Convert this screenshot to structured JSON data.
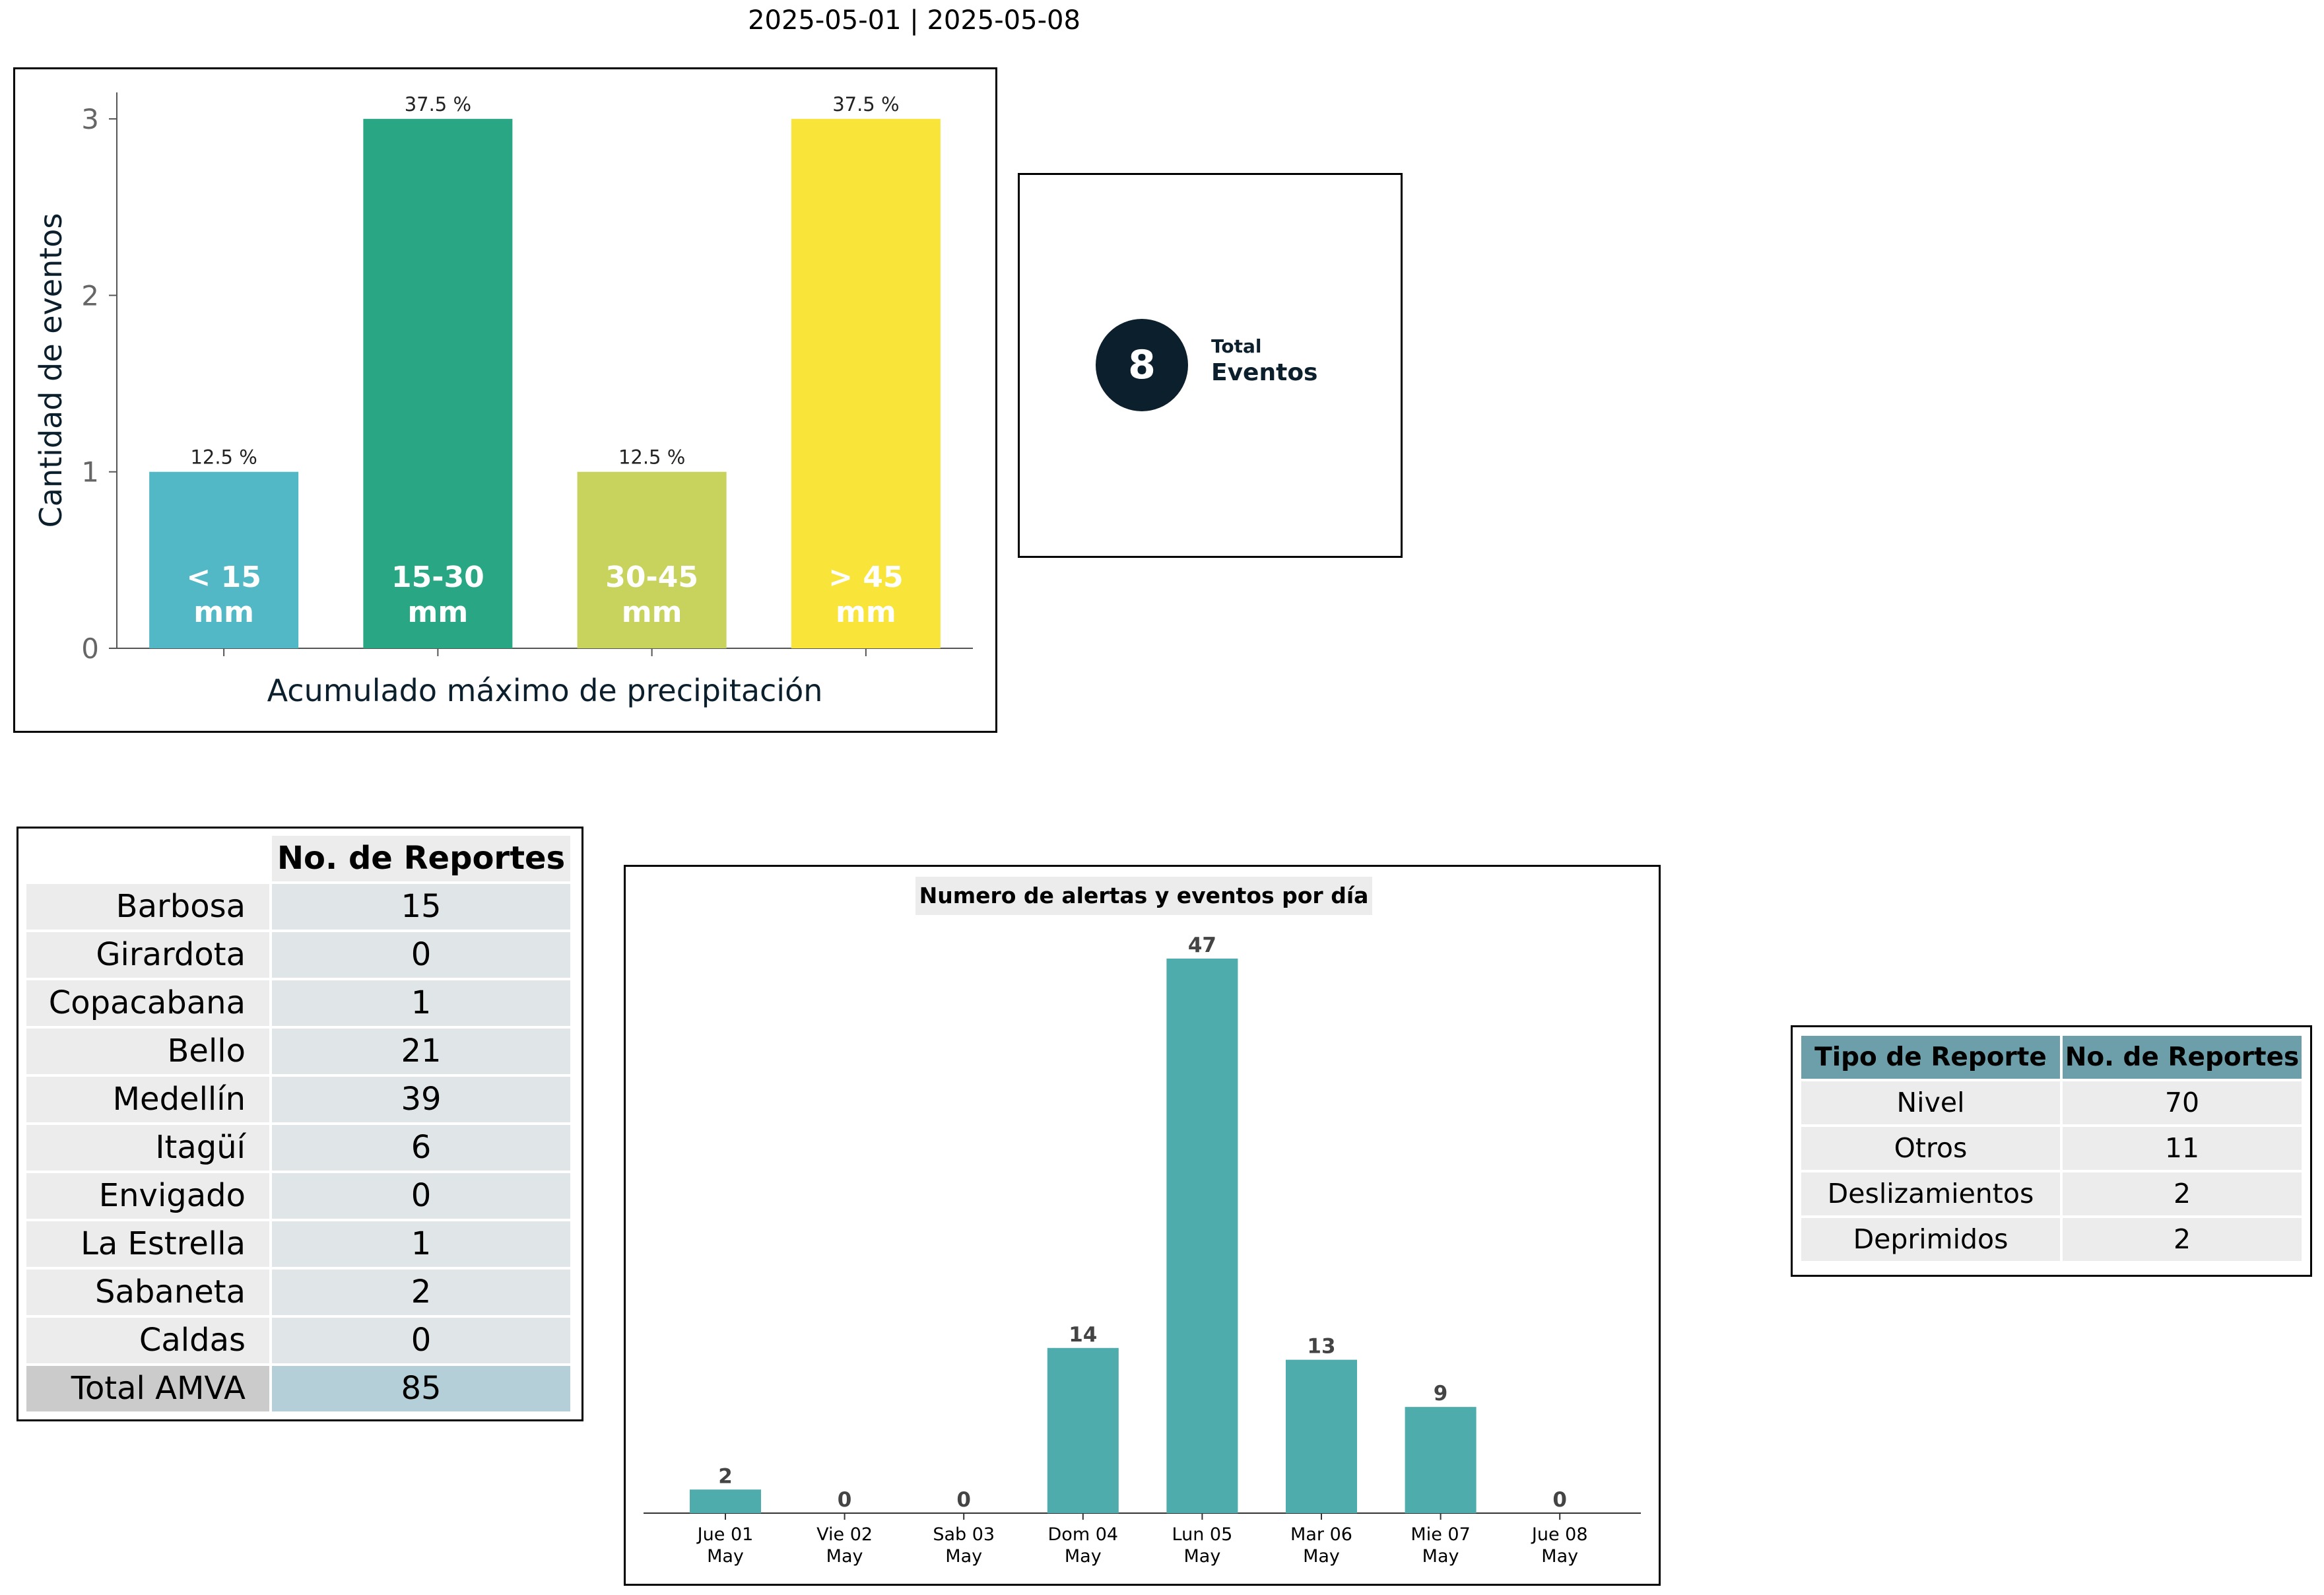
{
  "header": {
    "period": "2025-05-01  |  2025-05-08"
  },
  "kpi": {
    "value": "8",
    "label_small": "Total",
    "label_big": "Eventos"
  },
  "municipios": {
    "header": "No. de Reportes",
    "rows": [
      {
        "name": "Barbosa",
        "value": "15"
      },
      {
        "name": "Girardota",
        "value": "0"
      },
      {
        "name": "Copacabana",
        "value": "1"
      },
      {
        "name": "Bello",
        "value": "21"
      },
      {
        "name": "Medellín",
        "value": "39"
      },
      {
        "name": "Itagüí",
        "value": "6"
      },
      {
        "name": "Envigado",
        "value": "0"
      },
      {
        "name": "La Estrella",
        "value": "1"
      },
      {
        "name": "Sabaneta",
        "value": "2"
      },
      {
        "name": "Caldas",
        "value": "0"
      }
    ],
    "total": {
      "name": "Total AMVA",
      "value": "85"
    }
  },
  "tipo_reporte": {
    "headers": [
      "Tipo de Reporte",
      "No. de Reportes"
    ],
    "rows": [
      {
        "name": "Nivel",
        "value": "70"
      },
      {
        "name": "Otros",
        "value": "11"
      },
      {
        "name": "Deslizamientos",
        "value": "2"
      },
      {
        "name": "Deprimidos",
        "value": "2"
      }
    ]
  },
  "chart_data": [
    {
      "type": "bar",
      "categories": [
        "< 15 mm",
        "15-30 mm",
        "30-45 mm",
        "> 45 mm"
      ],
      "category_lines": [
        [
          "< 15",
          "mm"
        ],
        [
          "15-30",
          "mm"
        ],
        [
          "30-45",
          "mm"
        ],
        [
          "> 45",
          "mm"
        ]
      ],
      "values": [
        1,
        3,
        1,
        3
      ],
      "value_labels": [
        "12.5 %",
        "37.5 %",
        "12.5 %",
        "37.5 %"
      ],
      "colors": [
        "#52b8c5",
        "#29a684",
        "#c8d35e",
        "#f9e53a"
      ],
      "title": "",
      "xlabel": "Acumulado máximo de precipitación",
      "ylabel": "Cantidad de eventos",
      "ylim": [
        0,
        3.15
      ],
      "yticks": [
        0,
        1,
        2,
        3
      ],
      "grid": false
    },
    {
      "type": "bar",
      "title": "Numero de alertas y eventos por día",
      "categories": [
        "Jue 01 May",
        "Vie 02 May",
        "Sab 03 May",
        "Dom 04 May",
        "Lun 05 May",
        "Mar 06 May",
        "Mie 07 May",
        "Jue 08 May"
      ],
      "category_lines": [
        [
          "Jue 01",
          "May"
        ],
        [
          "Vie 02",
          "May"
        ],
        [
          "Sab 03",
          "May"
        ],
        [
          "Dom 04",
          "May"
        ],
        [
          "Lun 05",
          "May"
        ],
        [
          "Mar 06",
          "May"
        ],
        [
          "Mie 07",
          "May"
        ],
        [
          "Jue 08",
          "May"
        ]
      ],
      "values": [
        2,
        0,
        0,
        14,
        47,
        13,
        9,
        0
      ],
      "color": "#4eacad",
      "xlabel": "",
      "ylabel": "",
      "ylim": [
        0,
        47
      ],
      "grid": false
    }
  ]
}
